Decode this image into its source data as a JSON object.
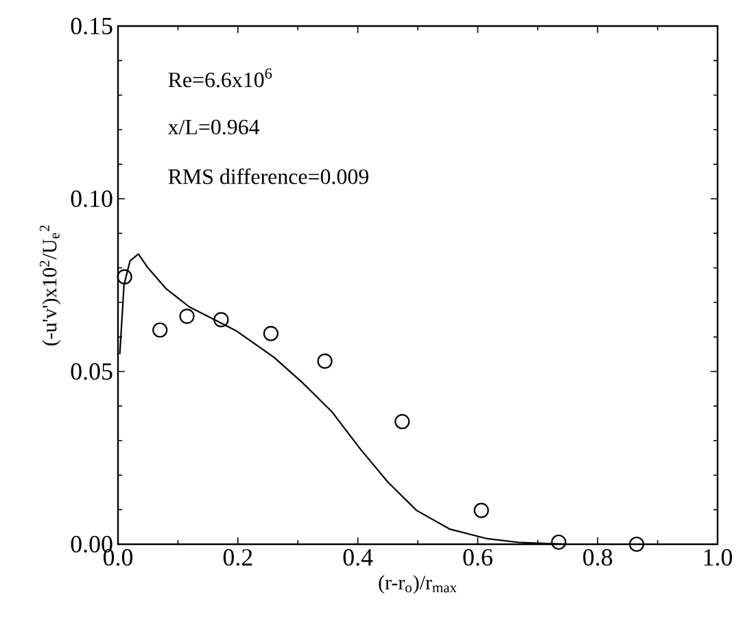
{
  "chart_data": {
    "type": "line",
    "xlabel": "(r-r$_{o}$)/r$_{max}$",
    "ylabel": "(-u'v')x10$^{2}$/U$_{e}$$^{2}$",
    "annotations": [
      "Re=6.6x10$^{6}$",
      "x/L=0.964",
      "RMS difference=0.009"
    ],
    "xlim": [
      0,
      1
    ],
    "ylim": [
      0,
      0.15
    ],
    "xticks": [
      {
        "value": 0,
        "label": "0.0"
      },
      {
        "value": 0.2,
        "label": "0.2"
      },
      {
        "value": 0.4,
        "label": "0.4"
      },
      {
        "value": 0.6,
        "label": "0.6"
      },
      {
        "value": 0.8,
        "label": "0.8"
      },
      {
        "value": 1,
        "label": "1.0"
      }
    ],
    "yticks": [
      {
        "value": 0,
        "label": "0.00"
      },
      {
        "value": 0.05,
        "label": "0.05"
      },
      {
        "value": 0.1,
        "label": "0.10"
      },
      {
        "value": 0.15,
        "label": "0.15"
      }
    ],
    "grid": false,
    "series": [
      {
        "color": "#000000",
        "marker": "none",
        "line_style": "solid",
        "x": [
          0.003,
          0.01,
          0.02,
          0.034,
          0.05,
          0.08,
          0.119,
          0.198,
          0.261,
          0.308,
          0.356,
          0.404,
          0.45,
          0.498,
          0.553,
          0.616,
          0.67,
          0.75
        ],
        "values": [
          0.055,
          0.075,
          0.082,
          0.084,
          0.08,
          0.074,
          0.0687,
          0.0617,
          0.054,
          0.0467,
          0.0385,
          0.0276,
          0.018,
          0.0098,
          0.0044,
          0.0016,
          0.0005,
          0.0
        ]
      },
      {
        "type": "scatter",
        "color": "#000000",
        "marker": "circle",
        "x": [
          0.011,
          0.07,
          0.115,
          0.172,
          0.255,
          0.345,
          0.474,
          0.606,
          0.735,
          0.865
        ],
        "values": [
          0.0774,
          0.062,
          0.066,
          0.065,
          0.061,
          0.053,
          0.0355,
          0.0098,
          0.0006,
          0.0
        ]
      }
    ]
  }
}
